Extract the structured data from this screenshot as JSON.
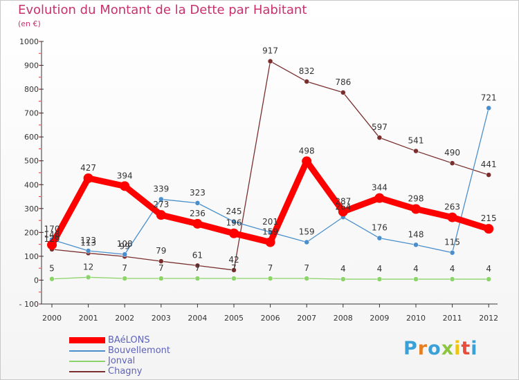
{
  "header": {
    "title": "Evolution du Montant de la Dette par Habitant",
    "subtitle": "(en €)"
  },
  "logo": {
    "text": "Proxiti"
  },
  "chart_data": {
    "type": "line",
    "title": "Evolution du Montant de la Dette par Habitant",
    "subtitle": "(en €)",
    "x": [
      "2000",
      "2001",
      "2002",
      "2003",
      "2004",
      "2005",
      "2006",
      "2007",
      "2008",
      "2009",
      "2010",
      "2011",
      "2012"
    ],
    "yticks": [
      "1000",
      "900",
      "800",
      "700",
      "600",
      "500",
      "400",
      "300",
      "200",
      "100",
      "0",
      "- 100"
    ],
    "ylim": [
      -100,
      1000
    ],
    "grid": false,
    "legend_position": "bottom-left",
    "series": [
      {
        "name": "BAéLONS",
        "color": "#ff0000",
        "values": [
          148,
          427,
          394,
          273,
          236,
          196,
          159,
          498,
          287,
          344,
          298,
          263,
          215
        ],
        "labels": [
          "148",
          "427",
          "394",
          "273",
          "236",
          "196",
          "159",
          "498",
          "287",
          "344",
          "298",
          "263",
          "215"
        ]
      },
      {
        "name": "Bouvellemont",
        "color": "#4a8fcc",
        "values": [
          170,
          123,
          108,
          339,
          323,
          245,
          201,
          159,
          264,
          176,
          148,
          115,
          721
        ],
        "labels": [
          "170",
          "123",
          "108",
          "339",
          "323",
          "245",
          "201",
          "159",
          "264",
          "176",
          "148",
          "115",
          "721"
        ]
      },
      {
        "name": "Jonval",
        "color": "#8cd36a",
        "values": [
          5,
          12,
          7,
          7,
          7,
          7,
          7,
          7,
          4,
          4,
          4,
          4,
          4
        ],
        "labels": [
          "5",
          "12",
          "7",
          "7",
          "7",
          "7",
          "7",
          "7",
          "4",
          "4",
          "4",
          "4",
          "4"
        ]
      },
      {
        "name": "Chagny",
        "color": "#7a2e2e",
        "values": [
          129,
          113,
          99,
          79,
          61,
          42,
          917,
          832,
          786,
          597,
          541,
          490,
          441
        ],
        "labels": [
          "129",
          "113",
          "99",
          "79",
          "61",
          "42",
          "917",
          "832",
          "786",
          "597",
          "541",
          "490",
          "441"
        ]
      }
    ]
  }
}
